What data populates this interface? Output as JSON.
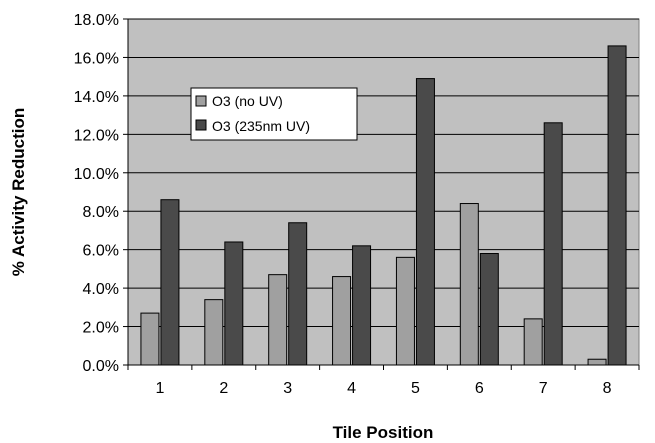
{
  "chart_data": {
    "type": "bar",
    "title": "",
    "xlabel": "Tile Position",
    "ylabel": "% Activity Reduction",
    "categories": [
      "1",
      "2",
      "3",
      "4",
      "5",
      "6",
      "7",
      "8"
    ],
    "series": [
      {
        "name": "O3 (no UV)",
        "color": "#a0a0a0",
        "values": [
          2.7,
          3.4,
          4.7,
          4.6,
          5.6,
          8.4,
          2.4,
          0.3
        ]
      },
      {
        "name": "O3 (235nm UV)",
        "color": "#4a4a4a",
        "values": [
          8.6,
          6.4,
          7.4,
          6.2,
          14.9,
          5.8,
          12.6,
          16.6
        ]
      }
    ],
    "ylim": [
      0,
      18
    ],
    "ytick_step": 2,
    "ytick_labels": [
      "0.0%",
      "2.0%",
      "4.0%",
      "6.0%",
      "8.0%",
      "10.0%",
      "12.0%",
      "14.0%",
      "16.0%",
      "18.0%"
    ],
    "grid": true,
    "plot_background": "#c0c0c0",
    "legend_position": "upper-left-inside"
  }
}
